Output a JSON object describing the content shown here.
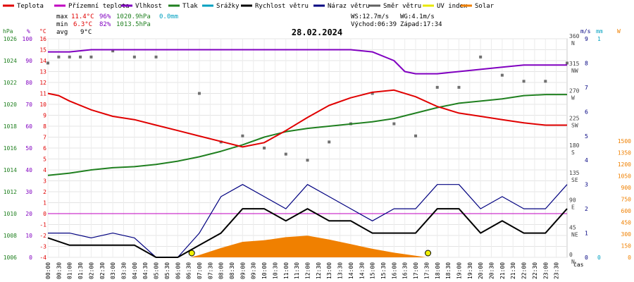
{
  "chart_data": {
    "type": "line",
    "title": "28.02.2024",
    "legend": [
      {
        "label": "Teplota",
        "color": "#e00000"
      },
      {
        "label": "Přízemní teplota",
        "color": "#c000c0"
      },
      {
        "label": "Vlhkost",
        "color": "#8000c0"
      },
      {
        "label": "Tlak",
        "color": "#208020"
      },
      {
        "label": "Srážky",
        "color": "#00a0c0"
      },
      {
        "label": "Rychlost větru",
        "color": "#000000"
      },
      {
        "label": "Náraz větru",
        "color": "#000080"
      },
      {
        "label": "Směr větru",
        "color": "#606060"
      },
      {
        "label": "UV index",
        "color": "#e8e800"
      },
      {
        "label": "Solar",
        "color": "#f08000"
      }
    ],
    "stats": {
      "max_label": "max",
      "min_label": "min",
      "avg_label": "avg",
      "max_temp": "11.4°C",
      "max_hum": "96%",
      "max_press": "1020.9hPa",
      "max_rain": "0.0mm",
      "min_temp": "6.3°C",
      "min_hum": "82%",
      "min_press": "1013.5hPa",
      "avg_temp": "9°C"
    },
    "wind_info": {
      "ws": "WS:12.7m/s",
      "wg": "WG:4.1m/s",
      "sunrise": "Východ:06:39",
      "sunset": "Západ:17:34"
    },
    "axes": {
      "hpa": {
        "label": "hPa",
        "ticks": [
          "1006",
          "1008",
          "1010",
          "1012",
          "1014",
          "1016",
          "1018",
          "1020",
          "1022",
          "1024",
          "1026"
        ]
      },
      "pct": {
        "label": "%",
        "ticks": [
          "0",
          "10",
          "20",
          "30",
          "40",
          "50",
          "60",
          "70",
          "80",
          "90",
          "100"
        ]
      },
      "degc": {
        "label": "°C",
        "ticks": [
          "-4",
          "-3",
          "-2",
          "-1",
          "0",
          "1",
          "2",
          "3",
          "4",
          "5",
          "6",
          "7",
          "8",
          "9",
          "10",
          "11",
          "12",
          "13",
          "14",
          "15",
          "16"
        ]
      },
      "dir": {
        "ticks": [
          "0",
          "45",
          "90",
          "135",
          "180",
          "225",
          "270",
          "315",
          "360"
        ],
        "sublabels": [
          "N",
          "NE",
          "E",
          "SE",
          "S",
          "SW",
          "W",
          "NW",
          "N"
        ]
      },
      "ms": {
        "label": "m/s",
        "ticks": [
          "0",
          "1",
          "2",
          "3",
          "4",
          "5",
          "6",
          "7",
          "8",
          "9"
        ]
      },
      "mm": {
        "label": "mm",
        "ticks": [
          "0",
          "1"
        ]
      },
      "w": {
        "label": "W",
        "ticks": [
          "0",
          "150",
          "300",
          "450",
          "600",
          "750",
          "900",
          "1050",
          "1200",
          "1350",
          "1500"
        ]
      },
      "x_label": "čas",
      "x_ticks": [
        "00:00",
        "00:30",
        "01:00",
        "01:30",
        "02:00",
        "02:30",
        "03:00",
        "03:30",
        "04:00",
        "04:30",
        "05:00",
        "05:30",
        "06:00",
        "06:30",
        "07:00",
        "07:30",
        "08:00",
        "08:30",
        "09:00",
        "09:30",
        "10:00",
        "10:30",
        "11:00",
        "11:30",
        "12:00",
        "12:30",
        "13:00",
        "13:30",
        "14:00",
        "14:30",
        "15:00",
        "15:30",
        "16:00",
        "16:30",
        "17:00",
        "17:30",
        "18:00",
        "18:30",
        "19:00",
        "19:30",
        "20:00",
        "20:30",
        "21:00",
        "21:30",
        "22:00",
        "22:30",
        "23:00",
        "23:30"
      ]
    },
    "series": [
      {
        "name": "Teplota",
        "unit": "°C",
        "x_hours": [
          0,
          0.5,
          1,
          2,
          3,
          4,
          5,
          6,
          7,
          8,
          9,
          10,
          11,
          12,
          13,
          14,
          15,
          16,
          17,
          18,
          19,
          20,
          21,
          22,
          23,
          24
        ],
        "values": [
          11,
          10.8,
          10.3,
          9.5,
          8.9,
          8.6,
          8.1,
          7.6,
          7.1,
          6.6,
          6.1,
          6.5,
          7.6,
          8.8,
          9.9,
          10.6,
          11.1,
          11.3,
          10.7,
          9.8,
          9.2,
          8.9,
          8.6,
          8.3,
          8.1,
          8.1
        ]
      },
      {
        "name": "Vlhkost",
        "unit": "%",
        "x_hours": [
          0,
          1,
          2,
          3,
          4,
          5,
          6,
          7,
          8,
          9,
          10,
          11,
          12,
          13,
          14,
          15,
          16,
          16.5,
          17,
          18,
          19,
          20,
          21,
          22,
          23,
          24
        ],
        "values": [
          94,
          94,
          95,
          95,
          95,
          95,
          95,
          95,
          95,
          95,
          95,
          95,
          95,
          95,
          95,
          94,
          90,
          85,
          84,
          84,
          85,
          86,
          87,
          88,
          88,
          88
        ]
      },
      {
        "name": "Tlak",
        "unit": "hPa",
        "x_hours": [
          0,
          1,
          2,
          3,
          4,
          5,
          6,
          7,
          8,
          9,
          10,
          11,
          12,
          13,
          14,
          15,
          16,
          17,
          18,
          19,
          20,
          21,
          22,
          23,
          24
        ],
        "values": [
          1013.5,
          1013.7,
          1014,
          1014.2,
          1014.3,
          1014.5,
          1014.8,
          1015.2,
          1015.7,
          1016.3,
          1017,
          1017.5,
          1017.8,
          1018,
          1018.2,
          1018.4,
          1018.7,
          1019.2,
          1019.7,
          1020.1,
          1020.3,
          1020.5,
          1020.8,
          1020.9,
          1020.9
        ]
      },
      {
        "name": "Rychlost větru",
        "unit": "m/s",
        "x_hours": [
          0,
          1,
          2,
          3,
          4,
          5,
          6,
          7,
          8,
          9,
          10,
          11,
          12,
          13,
          14,
          15,
          16,
          17,
          18,
          19,
          20,
          21,
          22,
          23,
          24
        ],
        "values": [
          0.8,
          0.5,
          0.5,
          0.5,
          0.5,
          0,
          0,
          0.5,
          1,
          2,
          2,
          1.5,
          2,
          1.5,
          1.5,
          1,
          1,
          1,
          2,
          2,
          1,
          1.5,
          1,
          1,
          2
        ]
      },
      {
        "name": "Náraz větru",
        "unit": "m/s",
        "x_hours": [
          0,
          1,
          2,
          3,
          4,
          5,
          6,
          7,
          8,
          9,
          10,
          11,
          12,
          13,
          14,
          15,
          16,
          17,
          18,
          19,
          20,
          21,
          22,
          23,
          24
        ],
        "values": [
          1,
          1,
          0.8,
          1,
          0.8,
          0,
          0,
          1,
          2.5,
          3,
          2.5,
          2,
          3,
          2.5,
          2,
          1.5,
          2,
          2,
          3,
          3,
          2,
          2.5,
          2,
          2,
          3
        ]
      },
      {
        "name": "Solar",
        "unit": "W",
        "x_hours": [
          6.6,
          7,
          8,
          9,
          10,
          11,
          12,
          13,
          14,
          15,
          16,
          17,
          17.5
        ],
        "values": [
          0,
          30,
          120,
          200,
          220,
          260,
          280,
          230,
          170,
          110,
          60,
          20,
          0
        ]
      },
      {
        "name": "Směr větru",
        "unit": "°",
        "x_hours": [
          0,
          0.5,
          1,
          1.5,
          2,
          3,
          4,
          5,
          7,
          8,
          9,
          10,
          11,
          12,
          13,
          14,
          15,
          16,
          17,
          18,
          19,
          20,
          21,
          22,
          23,
          24
        ],
        "values": [
          320,
          330,
          330,
          330,
          330,
          340,
          330,
          330,
          270,
          190,
          200,
          180,
          170,
          160,
          190,
          220,
          270,
          220,
          200,
          280,
          280,
          330,
          300,
          290,
          290,
          320
        ]
      }
    ],
    "x_range": [
      0,
      24
    ],
    "grid": true
  }
}
